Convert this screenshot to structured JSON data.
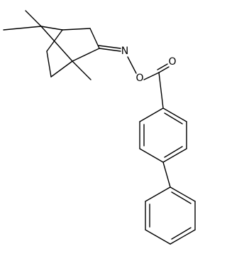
{
  "atoms": [
    {
      "label": "N"
    },
    {
      "label": "O"
    },
    {
      "label": "O"
    }
  ]
}
